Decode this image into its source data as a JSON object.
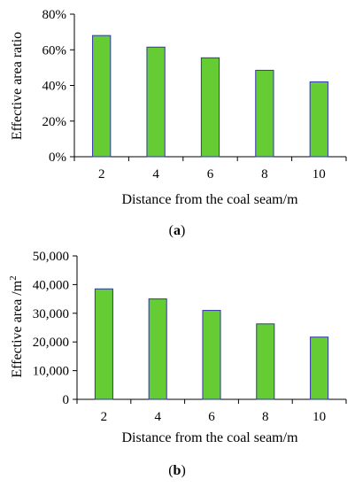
{
  "chart_data": [
    {
      "type": "bar",
      "categories": [
        "2",
        "4",
        "6",
        "8",
        "10"
      ],
      "values": [
        0.68,
        0.615,
        0.555,
        0.485,
        0.42
      ],
      "ylim": [
        0,
        0.8
      ],
      "yticks": [
        "0%",
        "20%",
        "40%",
        "60%",
        "80%"
      ],
      "xlabel": "Distance from the coal seam/m",
      "ylabel": "Effective area ratio",
      "caption": "(a)",
      "grid": false,
      "colors": {
        "bar_fill": "#66cc33",
        "bar_stroke": "#3333aa",
        "axis": "#000000"
      }
    },
    {
      "type": "bar",
      "categories": [
        "2",
        "4",
        "6",
        "8",
        "10"
      ],
      "values": [
        38500,
        35000,
        31000,
        26300,
        21700
      ],
      "ylim": [
        0,
        50000
      ],
      "yticks": [
        "0",
        "10,000",
        "20,000",
        "30,000",
        "40,000",
        "50,000"
      ],
      "xlabel": "Distance from the coal seam/m",
      "ylabel": "Effective area /m²",
      "caption": "(b)",
      "grid": false,
      "colors": {
        "bar_fill": "#66cc33",
        "bar_stroke": "#3333aa",
        "axis": "#000000"
      }
    }
  ]
}
